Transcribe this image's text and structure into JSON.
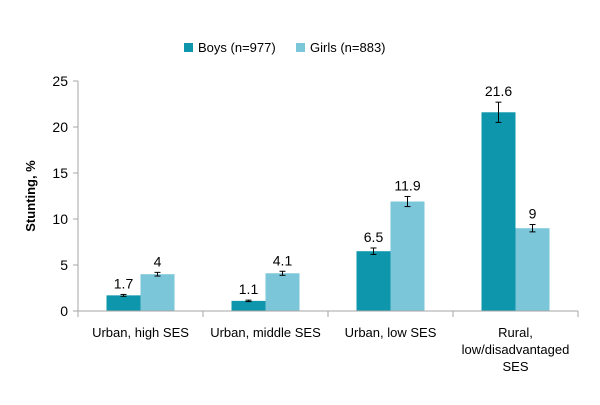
{
  "chart_data": {
    "type": "bar",
    "ylabel": "Stunting, %",
    "xlabel": "",
    "ylim": [
      0,
      25
    ],
    "yticks": [
      "0",
      "5",
      "10",
      "15",
      "20",
      "25"
    ],
    "grid": false,
    "legend_position": "top",
    "categories": [
      [
        "Urban, high SES"
      ],
      [
        "Urban, middle SES"
      ],
      [
        "Urban, low SES"
      ],
      [
        "Rural,",
        "low/disadvantaged",
        "SES"
      ]
    ],
    "series": [
      {
        "name": "Boys (n=977)",
        "color": "#0e97ac",
        "values": [
          1.7,
          1.1,
          6.5,
          21.6
        ],
        "labels": [
          "1.7",
          "1.1",
          "6.5",
          "21.6"
        ],
        "error": [
          0.1,
          0.08,
          0.35,
          1.1
        ]
      },
      {
        "name": "Girls (n=883)",
        "color": "#7cc6d9",
        "values": [
          4,
          4.1,
          11.9,
          9
        ],
        "labels": [
          "4",
          "4.1",
          "11.9",
          "9"
        ],
        "error": [
          0.2,
          0.22,
          0.55,
          0.4
        ]
      }
    ]
  }
}
